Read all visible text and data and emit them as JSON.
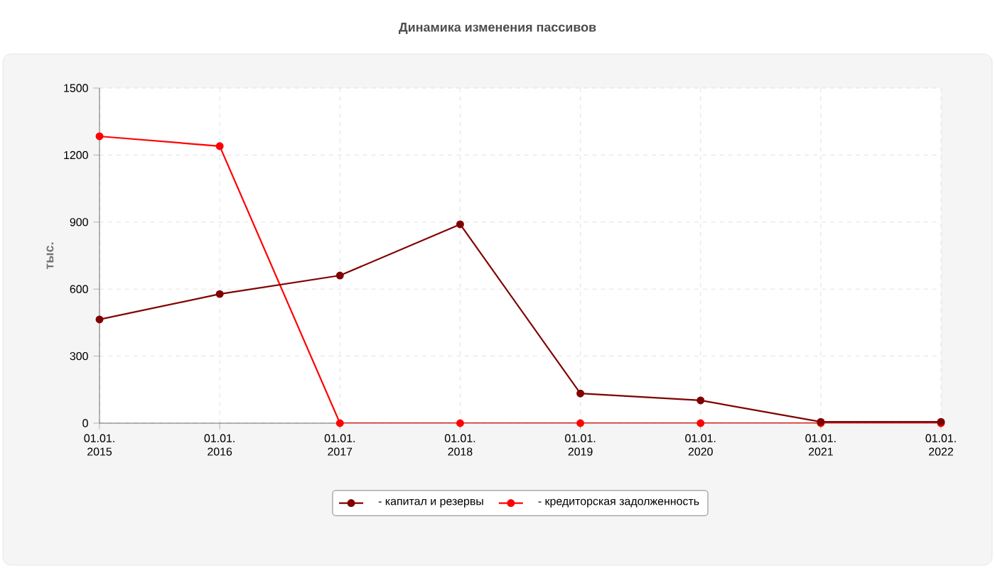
{
  "chart_data": {
    "type": "line",
    "title": "Динамика изменения пассивов",
    "ylabel": "тыс.",
    "categories": [
      "01.01. 2015",
      "01.01. 2016",
      "01.01. 2017",
      "01.01. 2018",
      "01.01. 2019",
      "01.01. 2020",
      "01.01. 2021",
      "01.01. 2022"
    ],
    "series": [
      {
        "name": "- капитал и резервы",
        "color": "#800000",
        "values": [
          464,
          578,
          661,
          890,
          133,
          102,
          6,
          6
        ]
      },
      {
        "name": "- кредиторская задолженность",
        "color": "#ff0000",
        "values": [
          1284,
          1240,
          0,
          0,
          0,
          0,
          0,
          0
        ]
      }
    ],
    "ylim": [
      0,
      1500
    ],
    "yticks": [
      0,
      300,
      600,
      900,
      1200,
      1500
    ],
    "grid": true,
    "legend": "bottom",
    "marker": "circle",
    "line_style": "solid"
  }
}
